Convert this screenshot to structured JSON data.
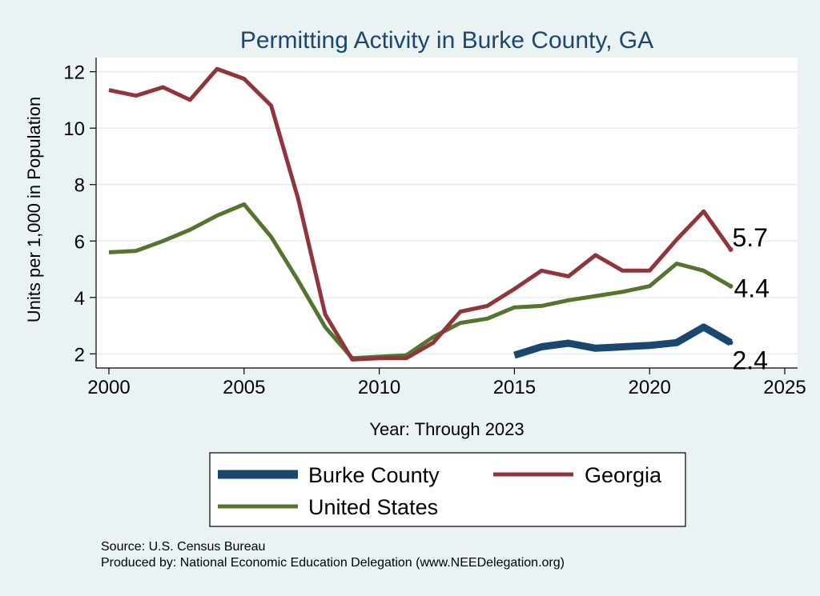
{
  "chart_data": {
    "type": "line",
    "title": "Permitting Activity in Burke County, GA",
    "xlabel": "Year: Through 2023",
    "ylabel": "Units per 1,000 in Population",
    "xlim": [
      2000,
      2025
    ],
    "ylim": [
      1.5,
      12.5
    ],
    "xticks": [
      2000,
      2005,
      2010,
      2015,
      2020,
      2025
    ],
    "yticks": [
      2,
      4,
      6,
      8,
      10,
      12
    ],
    "grid": true,
    "legend_position": "bottom",
    "series": [
      {
        "name": "Burke County",
        "color": "#1a476f",
        "weight": "thick",
        "x": [
          2015,
          2016,
          2017,
          2018,
          2019,
          2020,
          2021,
          2022,
          2023
        ],
        "y": [
          1.95,
          2.25,
          2.38,
          2.2,
          2.25,
          2.3,
          2.4,
          2.95,
          2.4
        ],
        "end_label": "2.4"
      },
      {
        "name": "Georgia",
        "color": "#90353b",
        "weight": "normal",
        "x": [
          2000,
          2001,
          2002,
          2003,
          2004,
          2005,
          2006,
          2007,
          2008,
          2009,
          2010,
          2011,
          2012,
          2013,
          2014,
          2015,
          2016,
          2017,
          2018,
          2019,
          2020,
          2021,
          2022,
          2023
        ],
        "y": [
          11.35,
          11.15,
          11.45,
          11.0,
          12.1,
          11.75,
          10.8,
          7.5,
          3.4,
          1.8,
          1.85,
          1.85,
          2.4,
          3.5,
          3.7,
          4.3,
          4.95,
          4.75,
          5.5,
          4.95,
          4.95,
          6.05,
          7.05,
          5.7
        ],
        "end_label": "5.7"
      },
      {
        "name": "United States",
        "color": "#55752f",
        "weight": "normal",
        "x": [
          2000,
          2001,
          2002,
          2003,
          2004,
          2005,
          2006,
          2007,
          2008,
          2009,
          2010,
          2011,
          2012,
          2013,
          2014,
          2015,
          2016,
          2017,
          2018,
          2019,
          2020,
          2021,
          2022,
          2023
        ],
        "y": [
          5.6,
          5.65,
          6.0,
          6.4,
          6.9,
          7.3,
          6.15,
          4.6,
          2.95,
          1.85,
          1.9,
          1.95,
          2.6,
          3.1,
          3.25,
          3.65,
          3.7,
          3.9,
          4.05,
          4.2,
          4.4,
          5.2,
          4.95,
          4.4
        ],
        "end_label": "4.4"
      }
    ]
  },
  "notes": {
    "source": "Source: U.S. Census Bureau",
    "produced": "Produced by: National Economic Education Delegation (www.NEEDelegation.org)"
  }
}
